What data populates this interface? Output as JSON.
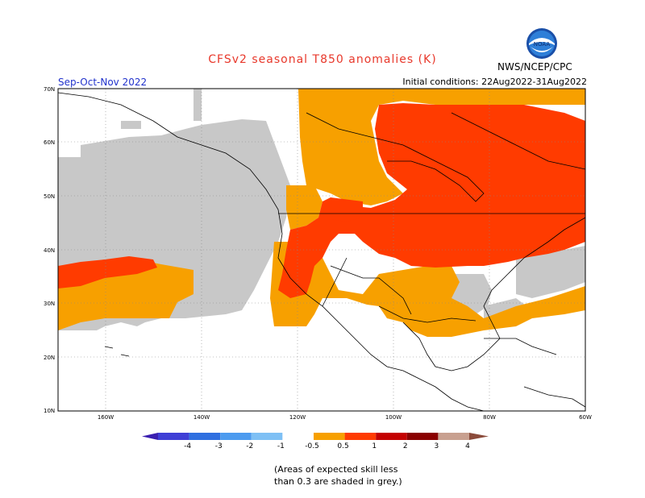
{
  "title": "CFSv2 seasonal T850 anomalies (K)",
  "season": "Sep-Oct-Nov 2022",
  "initial_conditions": "Initial conditions: 22Aug2022-31Aug2022",
  "agency": "NWS/NCEP/CPC",
  "logo_text": "NOAA",
  "lat_labels": [
    "70N",
    "60N",
    "50N",
    "40N",
    "30N",
    "20N",
    "10N"
  ],
  "lon_labels": [
    "160W",
    "140W",
    "120W",
    "100W",
    "80W",
    "60W"
  ],
  "colorbar": {
    "labels": [
      "-4",
      "-3",
      "-2",
      "-1",
      "-0.5",
      "0.5",
      "1",
      "2",
      "3",
      "4"
    ],
    "colors": [
      "#3a1fb0",
      "#3f3fd6",
      "#2f6fe0",
      "#4c9bef",
      "#7ec0f5",
      "#ffffff",
      "#f7a000",
      "#ff3b00",
      "#c40000",
      "#8a0000",
      "#c8a090",
      "#8b4b3b"
    ]
  },
  "note": [
    "(Areas of expected skill less",
    "than 0.3 are shaded in grey.)"
  ],
  "legend_colors": {
    "grey": "#c8c8c8",
    "orange": "#f7a000",
    "red_orange": "#ff3b00",
    "white": "#ffffff"
  }
}
